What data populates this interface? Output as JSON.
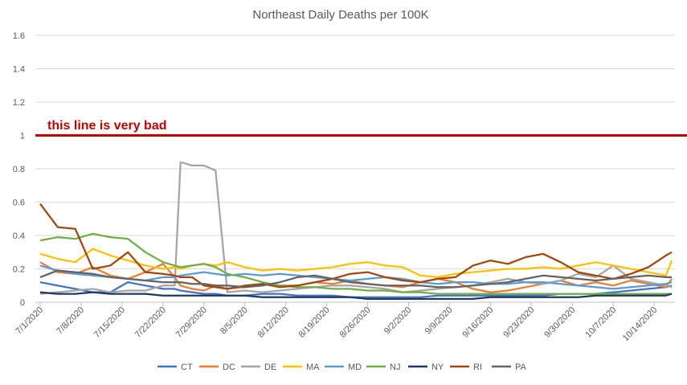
{
  "chart_data": {
    "type": "line",
    "title": "Northeast Daily Deaths per 100K",
    "ylim": [
      0,
      1.6
    ],
    "yticks": [
      "0",
      "0.2",
      "0.4",
      "0.6",
      "0.8",
      "1",
      "1.2",
      "1.4",
      "1.6"
    ],
    "ytick_values": [
      0,
      0.2,
      0.4,
      0.6,
      0.8,
      1,
      1.2,
      1.4,
      1.6
    ],
    "x_start": "7/1/2020",
    "xticks": [
      "7/1/2020",
      "7/8/2020",
      "7/15/2020",
      "7/22/2020",
      "7/29/2020",
      "8/5/2020",
      "8/12/2020",
      "8/19/2020",
      "8/26/2020",
      "9/2/2020",
      "9/9/2020",
      "9/16/2020",
      "9/23/2020",
      "9/30/2020",
      "10/7/2020",
      "10/14/2020"
    ],
    "grid": true,
    "legend_position": "bottom",
    "reference_line": {
      "y": 1,
      "label": "this line is very bad",
      "color": "#c00000"
    },
    "x": [
      "7/1",
      "7/4",
      "7/7",
      "7/10",
      "7/13",
      "7/16",
      "7/19",
      "7/22",
      "7/24",
      "7/25",
      "7/27",
      "7/29",
      "7/31",
      "8/2",
      "8/5",
      "8/8",
      "8/11",
      "8/14",
      "8/17",
      "8/20",
      "8/23",
      "8/26",
      "8/29",
      "9/1",
      "9/4",
      "9/7",
      "9/10",
      "9/13",
      "9/16",
      "9/19",
      "9/22",
      "9/25",
      "9/28",
      "10/1",
      "10/4",
      "10/7",
      "10/10",
      "10/13",
      "10/16",
      "10/17"
    ],
    "series": [
      {
        "name": "CT",
        "color": "#4472c4",
        "values": [
          0.12,
          0.1,
          0.08,
          0.06,
          0.06,
          0.12,
          0.1,
          0.08,
          0.08,
          0.07,
          0.06,
          0.05,
          0.05,
          0.04,
          0.04,
          0.05,
          0.05,
          0.04,
          0.04,
          0.04,
          0.03,
          0.03,
          0.03,
          0.03,
          0.03,
          0.04,
          0.04,
          0.04,
          0.04,
          0.04,
          0.04,
          0.04,
          0.05,
          0.05,
          0.05,
          0.06,
          0.07,
          0.08,
          0.09,
          0.1
        ]
      },
      {
        "name": "DC",
        "color": "#ed7d31",
        "values": [
          0.24,
          0.18,
          0.17,
          0.21,
          0.16,
          0.14,
          0.18,
          0.23,
          0.15,
          0.1,
          0.08,
          0.07,
          0.1,
          0.08,
          0.09,
          0.11,
          0.1,
          0.1,
          0.12,
          0.11,
          0.13,
          0.11,
          0.1,
          0.09,
          0.12,
          0.14,
          0.12,
          0.08,
          0.06,
          0.07,
          0.09,
          0.11,
          0.13,
          0.1,
          0.12,
          0.1,
          0.13,
          0.11,
          0.09,
          0.14
        ]
      },
      {
        "name": "DE",
        "color": "#a5a5a5",
        "values": [
          0.05,
          0.06,
          0.07,
          0.08,
          0.06,
          0.07,
          0.07,
          0.1,
          0.1,
          0.84,
          0.82,
          0.82,
          0.79,
          0.06,
          0.07,
          0.06,
          0.07,
          0.08,
          0.09,
          0.1,
          0.1,
          0.09,
          0.08,
          0.06,
          0.07,
          0.08,
          0.09,
          0.1,
          0.12,
          0.14,
          0.12,
          0.11,
          0.13,
          0.17,
          0.15,
          0.22,
          0.14,
          0.12,
          0.1,
          0.09
        ]
      },
      {
        "name": "MA",
        "color": "#ffc000",
        "values": [
          0.29,
          0.26,
          0.24,
          0.32,
          0.28,
          0.25,
          0.22,
          0.2,
          0.21,
          0.2,
          0.22,
          0.23,
          0.22,
          0.24,
          0.21,
          0.19,
          0.2,
          0.19,
          0.2,
          0.21,
          0.23,
          0.24,
          0.22,
          0.21,
          0.16,
          0.15,
          0.17,
          0.18,
          0.19,
          0.2,
          0.2,
          0.21,
          0.2,
          0.22,
          0.24,
          0.22,
          0.2,
          0.18,
          0.16,
          0.25
        ]
      },
      {
        "name": "MD",
        "color": "#5b9bd5",
        "values": [
          0.22,
          0.19,
          0.17,
          0.16,
          0.15,
          0.14,
          0.13,
          0.15,
          0.15,
          0.16,
          0.17,
          0.18,
          0.17,
          0.16,
          0.17,
          0.16,
          0.17,
          0.16,
          0.15,
          0.14,
          0.13,
          0.14,
          0.15,
          0.14,
          0.12,
          0.11,
          0.12,
          0.12,
          0.11,
          0.11,
          0.12,
          0.12,
          0.11,
          0.1,
          0.09,
          0.08,
          0.09,
          0.1,
          0.11,
          0.12
        ]
      },
      {
        "name": "NJ",
        "color": "#70ad47",
        "values": [
          0.37,
          0.39,
          0.38,
          0.41,
          0.39,
          0.38,
          0.3,
          0.24,
          0.22,
          0.21,
          0.22,
          0.23,
          0.21,
          0.17,
          0.15,
          0.12,
          0.1,
          0.09,
          0.09,
          0.08,
          0.08,
          0.07,
          0.07,
          0.06,
          0.06,
          0.05,
          0.05,
          0.05,
          0.05,
          0.05,
          0.05,
          0.05,
          0.05,
          0.05,
          0.05,
          0.05,
          0.05,
          0.05,
          0.05,
          0.05
        ]
      },
      {
        "name": "NY",
        "color": "#1f3864",
        "values": [
          0.06,
          0.05,
          0.05,
          0.06,
          0.05,
          0.05,
          0.05,
          0.04,
          0.04,
          0.04,
          0.04,
          0.04,
          0.04,
          0.04,
          0.04,
          0.03,
          0.03,
          0.03,
          0.03,
          0.03,
          0.03,
          0.02,
          0.02,
          0.02,
          0.02,
          0.02,
          0.02,
          0.02,
          0.03,
          0.03,
          0.03,
          0.03,
          0.03,
          0.03,
          0.04,
          0.04,
          0.04,
          0.04,
          0.04,
          0.05
        ]
      },
      {
        "name": "RI",
        "color": "#9e480e",
        "values": [
          0.59,
          0.45,
          0.44,
          0.2,
          0.22,
          0.3,
          0.18,
          0.17,
          0.16,
          0.15,
          0.15,
          0.1,
          0.09,
          0.08,
          0.1,
          0.11,
          0.09,
          0.1,
          0.12,
          0.14,
          0.17,
          0.18,
          0.15,
          0.13,
          0.12,
          0.14,
          0.15,
          0.22,
          0.25,
          0.23,
          0.27,
          0.29,
          0.24,
          0.18,
          0.16,
          0.14,
          0.17,
          0.21,
          0.28,
          0.3
        ]
      },
      {
        "name": "PA",
        "color": "#636363",
        "values": [
          0.15,
          0.19,
          0.18,
          0.17,
          0.15,
          0.14,
          0.13,
          0.12,
          0.12,
          0.12,
          0.11,
          0.11,
          0.1,
          0.1,
          0.09,
          0.1,
          0.12,
          0.15,
          0.16,
          0.14,
          0.12,
          0.11,
          0.1,
          0.1,
          0.1,
          0.09,
          0.09,
          0.1,
          0.11,
          0.12,
          0.14,
          0.16,
          0.15,
          0.14,
          0.13,
          0.14,
          0.15,
          0.16,
          0.15,
          0.15
        ]
      }
    ]
  }
}
